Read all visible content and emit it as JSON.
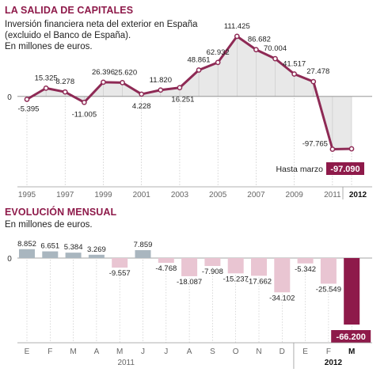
{
  "chart_data": [
    {
      "type": "area",
      "title": "LA SALIDA DE CAPITALES",
      "subtitle_lines": [
        "Inversión financiera neta del exterior en España",
        "(excluido el Banco de España).",
        "En millones de euros."
      ],
      "x": [
        1995,
        1996,
        1997,
        1998,
        1999,
        2000,
        2001,
        2002,
        2003,
        2004,
        2005,
        2006,
        2007,
        2008,
        2009,
        2010,
        2011,
        2012
      ],
      "values": [
        -5395,
        15325,
        8278,
        -11005,
        26396,
        25620,
        4228,
        11820,
        16251,
        48861,
        62932,
        111425,
        86682,
        70004,
        41517,
        27478,
        -97765,
        -97090
      ],
      "value_labels": [
        "-5.395",
        "15.325",
        "8.278",
        "-11.005",
        "26.396",
        "25.620",
        "4.228",
        "11.820",
        "16.251",
        "48.861",
        "62.932",
        "111.425",
        "86.682",
        "70.004",
        "41.517",
        "27.478",
        "-97.765",
        "-97.090"
      ],
      "x_tick_labels": [
        "1995",
        "1997",
        "1999",
        "2001",
        "2003",
        "2005",
        "2007",
        "2009",
        "2011",
        "2012"
      ],
      "zero_label": "0",
      "annotation": "Hasta marzo",
      "highlight_value": "-97.090",
      "ylim": [
        -100000,
        120000
      ],
      "colors": {
        "line": "#8e2a55",
        "area": "#e8e8e8",
        "highlight": "#8e1a4a"
      }
    },
    {
      "type": "bar",
      "title": "EVOLUCIÓN MENSUAL",
      "subtitle_lines": [
        "En millones de euros."
      ],
      "categories": [
        "E",
        "F",
        "M",
        "A",
        "M",
        "J",
        "J",
        "A",
        "S",
        "O",
        "N",
        "D",
        "E",
        "F",
        "M"
      ],
      "values": [
        8852,
        6651,
        5384,
        3269,
        -9557,
        7859,
        -4768,
        -18087,
        -7908,
        -15237,
        -17662,
        -34102,
        -5342,
        -25549,
        -66200
      ],
      "value_labels": [
        "8.852",
        "6.651",
        "5.384",
        "3.269",
        "-9.557",
        "7.859",
        "-4.768",
        "-18.087",
        "-7.908",
        "-15.237",
        "-17.662",
        "-34.102",
        "-5.342",
        "-25.549",
        "-66.200"
      ],
      "year_labels": [
        "2011",
        "2012"
      ],
      "zero_label": "0",
      "highlight_value": "-66.200",
      "ylim": [
        -70000,
        12000
      ],
      "colors": {
        "positive": "#a9b6bf",
        "negative": "#e9c5d2",
        "highlight": "#8e1a4a"
      }
    }
  ]
}
